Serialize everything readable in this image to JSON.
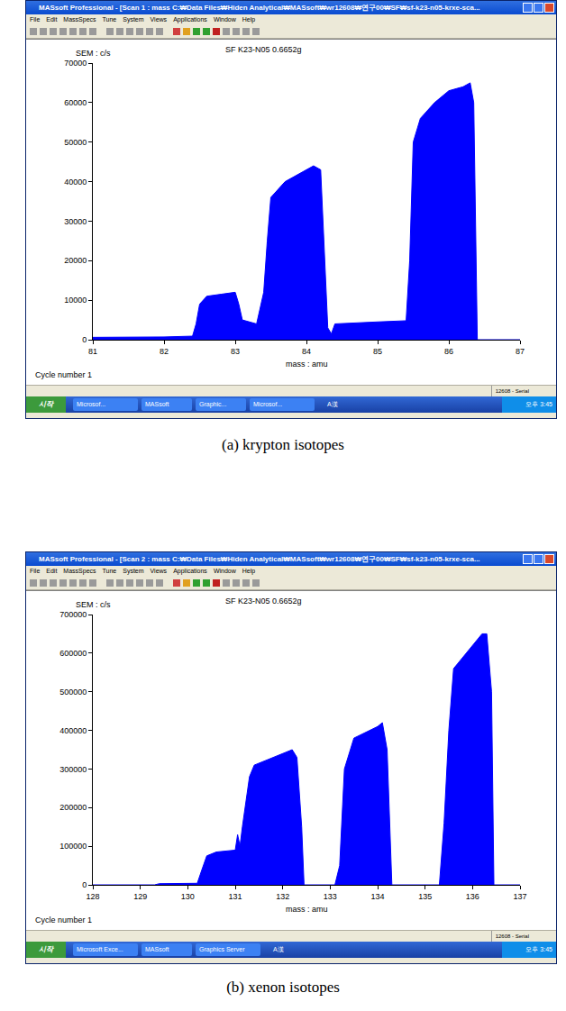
{
  "chart_data": [
    {
      "type": "area",
      "title": "SF K23-N05 0.6652g",
      "y_label": "SEM : c/s",
      "x_label": "mass : amu",
      "annotations": [
        "Cycle number 1"
      ],
      "x": [
        81,
        81.5,
        82,
        82.4,
        82.45,
        82.5,
        82.6,
        82.8,
        83.0,
        83.05,
        83.1,
        83.3,
        83.4,
        83.45,
        83.5,
        83.7,
        84.0,
        84.1,
        84.2,
        84.3,
        84.35,
        84.4,
        85.0,
        85.4,
        85.45,
        85.5,
        85.6,
        85.8,
        86.0,
        86.2,
        86.3,
        86.35,
        86.4,
        87
      ],
      "values": [
        600,
        600,
        700,
        900,
        4000,
        9000,
        11000,
        11500,
        12000,
        9000,
        5000,
        4000,
        12000,
        25000,
        36000,
        40000,
        43000,
        44000,
        43000,
        3000,
        1500,
        4000,
        4500,
        4800,
        20000,
        50000,
        56000,
        60000,
        63000,
        64000,
        65000,
        60000,
        0,
        0
      ],
      "color": "#0000ff",
      "xlim": [
        81,
        87
      ],
      "xticks": [
        81,
        82,
        83,
        84,
        85,
        86,
        87
      ],
      "ylim": [
        0,
        70000
      ],
      "yticks": [
        0,
        10000,
        20000,
        30000,
        40000,
        50000,
        60000,
        70000
      ],
      "grid": false
    },
    {
      "type": "area",
      "title": "SF K23-N05 0.6652g",
      "y_label": "SEM : c/s",
      "x_label": "mass : amu",
      "annotations": [
        "Cycle number 1"
      ],
      "x": [
        128,
        129.3,
        129.4,
        130.2,
        130.3,
        130.4,
        130.6,
        131.0,
        131.05,
        131.1,
        131.15,
        131.3,
        131.4,
        131.6,
        132.0,
        132.2,
        132.3,
        132.4,
        132.45,
        133.1,
        133.2,
        133.3,
        133.5,
        134.0,
        134.1,
        134.2,
        134.3,
        135.3,
        135.4,
        135.5,
        135.6,
        136.0,
        136.2,
        136.3,
        136.4,
        136.45,
        137
      ],
      "values": [
        0,
        0,
        3000,
        4000,
        40000,
        75000,
        85000,
        90000,
        130000,
        100000,
        150000,
        280000,
        310000,
        320000,
        340000,
        350000,
        330000,
        150000,
        0,
        0,
        50000,
        300000,
        380000,
        410000,
        420000,
        350000,
        0,
        0,
        160000,
        400000,
        560000,
        620000,
        650000,
        650000,
        500000,
        0,
        0
      ],
      "color": "#0000ff",
      "xlim": [
        128,
        137
      ],
      "xticks": [
        128,
        129,
        130,
        131,
        132,
        133,
        134,
        135,
        136,
        137
      ],
      "ylim": [
        0,
        700000
      ],
      "yticks": [
        0,
        100000,
        200000,
        300000,
        400000,
        500000,
        600000,
        700000
      ],
      "grid": false
    }
  ],
  "screenshots": [
    {
      "window_title": "MASsoft Professional - [Scan 1 : mass C:₩Data Files₩Hiden Analytical₩MASsoft₩wr12608₩연구00₩SF₩sf-k23-n05-krxe-sca...",
      "menu": [
        "File",
        "Edit",
        "MassSpecs",
        "Tune",
        "System",
        "Views",
        "Applications",
        "Window",
        "Help"
      ],
      "status": "12608 - Serial",
      "taskbar": {
        "start": "시작",
        "items": [
          "Microsof...",
          "MASsoft",
          "Graphic...",
          "Microsof..."
        ],
        "ime": "A漢",
        "clock": "오후 3:45"
      },
      "caption": "(a) krypton isotopes"
    },
    {
      "window_title": "MASsoft Professional - [Scan 2 : mass C:₩Data Files₩Hiden Analytical₩MASsoft₩wr12608₩연구00₩SF₩sf-k23-n05-krxe-sca...",
      "menu": [
        "File",
        "Edit",
        "MassSpecs",
        "Tune",
        "System",
        "Views",
        "Applications",
        "Window",
        "Help"
      ],
      "status": "12608 - Serial",
      "taskbar": {
        "start": "시작",
        "items": [
          "Microsoft Exce...",
          "MASsoft",
          "Graphics Server"
        ],
        "ime": "A漢",
        "clock": "오후 3:45"
      },
      "caption": "(b) xenon isotopes"
    }
  ]
}
